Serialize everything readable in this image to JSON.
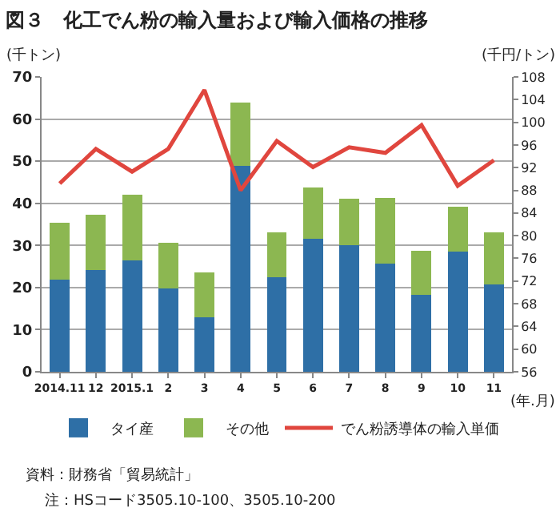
{
  "chart_data": {
    "type": "bar",
    "title": "図３　化工でん粉の輸入量および輸入価格の推移",
    "xlabel": "(年.月)",
    "ylabel": "(千トン)",
    "y2label": "(千円/トン)",
    "categories": [
      "2014.11",
      "12",
      "2015.1",
      "2",
      "3",
      "4",
      "5",
      "6",
      "7",
      "8",
      "9",
      "10",
      "11"
    ],
    "stacked": true,
    "series": [
      {
        "name": "タイ産",
        "color": "#2e6fa6",
        "values": [
          21.9,
          24.1,
          26.4,
          19.7,
          12.9,
          48.8,
          22.4,
          31.5,
          30.0,
          25.7,
          18.3,
          28.6,
          20.8
        ]
      },
      {
        "name": "その他",
        "color": "#8cb751",
        "values": [
          13.5,
          13.1,
          15.6,
          11.0,
          10.7,
          15.1,
          10.7,
          12.2,
          11.0,
          15.5,
          10.5,
          10.5,
          12.3
        ]
      },
      {
        "name": "でん粉誘導体の輸入単価",
        "type": "line",
        "axis": "y2",
        "color": "#e0463e",
        "values": [
          89.2,
          95.3,
          91.3,
          95.3,
          105.7,
          88.0,
          96.7,
          92.1,
          95.6,
          94.6,
          99.5,
          88.8,
          93.3
        ]
      }
    ],
    "ylim": [
      0,
      70
    ],
    "yticks": [
      0,
      10,
      20,
      30,
      40,
      50,
      60,
      70
    ],
    "y2lim": [
      56,
      108
    ],
    "y2ticks": [
      56,
      60,
      64,
      68,
      72,
      76,
      80,
      84,
      88,
      92,
      96,
      100,
      104,
      108
    ],
    "grid": "y",
    "legend": "bottom",
    "marker": "none",
    "line_style": "solid",
    "annotations": [
      "資料：財務省「貿易統計」",
      "注：HSコード3505.10-100、3505.10-200"
    ]
  }
}
